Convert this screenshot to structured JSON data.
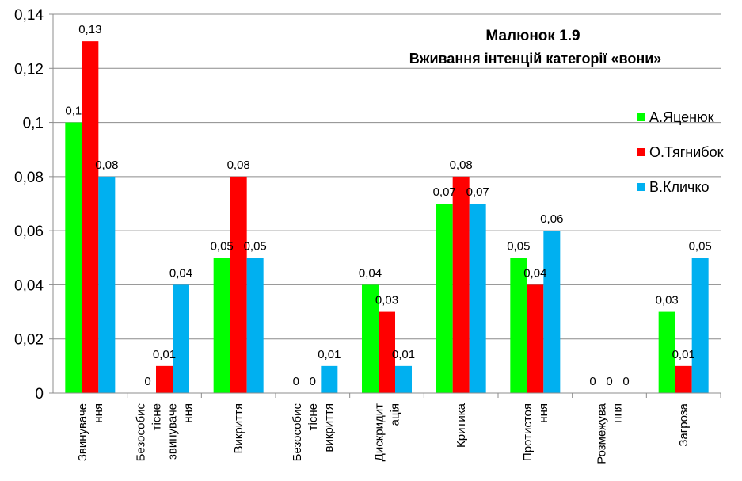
{
  "chart_data": {
    "type": "bar",
    "title": "Малюнок 1.9",
    "subtitle": "Вживання інтенцій категорії «вони»",
    "categories": [
      [
        "Звинуваче",
        "ння"
      ],
      [
        "Безособис",
        "тісне",
        "звинуваче",
        "ння"
      ],
      [
        "Викриття"
      ],
      [
        "Безособис",
        "тісне",
        "викриття"
      ],
      [
        "Дискридит",
        "ація"
      ],
      [
        "Критика"
      ],
      [
        "Протистоя",
        "ння"
      ],
      [
        "Розмежува",
        "ння"
      ],
      [
        "Загроза"
      ]
    ],
    "series": [
      {
        "name": "А.Яценюк",
        "color": "#00ff00",
        "values": [
          0.1,
          0,
          0.05,
          0,
          0.04,
          0.07,
          0.05,
          0,
          0.03
        ],
        "labels": [
          "0,1",
          "0",
          "0,05",
          "0",
          "0,04",
          "0,07",
          "0,05",
          "0",
          "0,03"
        ]
      },
      {
        "name": "О.Тягнибок",
        "color": "#ff0000",
        "values": [
          0.13,
          0.01,
          0.08,
          0,
          0.03,
          0.08,
          0.04,
          0,
          0.01
        ],
        "labels": [
          "0,13",
          "0,01",
          "0,08",
          "0",
          "0,03",
          "0,08",
          "0,04",
          "0",
          "0,01"
        ]
      },
      {
        "name": "В.Кличко",
        "color": "#00b0f0",
        "values": [
          0.08,
          0.04,
          0.05,
          0.01,
          0.01,
          0.07,
          0.06,
          0,
          0.05
        ],
        "labels": [
          "0,08",
          "0,04",
          "0,05",
          "0,01",
          "0,01",
          "0,07",
          "0,06",
          "0",
          "0,05"
        ]
      }
    ],
    "yticks": [
      "0",
      "0,02",
      "0,04",
      "0,06",
      "0,08",
      "0,1",
      "0,12",
      "0,14"
    ],
    "ylim": [
      0,
      0.14
    ],
    "grid": true,
    "legend": "right"
  }
}
